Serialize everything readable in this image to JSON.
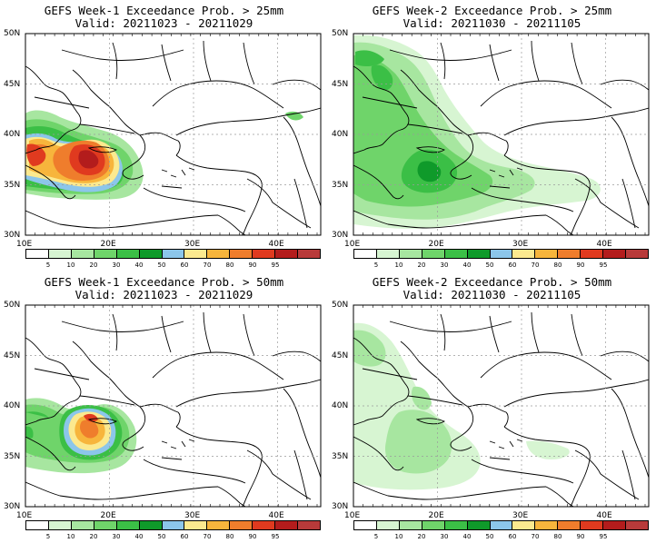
{
  "panels": [
    {
      "title": "GEFS Week-1 Exceedance Prob. > 25mm",
      "valid": "Valid: 20211023 - 20211029",
      "key": "w1_25"
    },
    {
      "title": "GEFS Week-2 Exceedance Prob. > 25mm",
      "valid": "Valid: 20211030 - 20211105",
      "key": "w2_25"
    },
    {
      "title": "GEFS Week-1 Exceedance Prob. > 50mm",
      "valid": "Valid: 20211023 - 20211029",
      "key": "w1_50"
    },
    {
      "title": "GEFS Week-2 Exceedance Prob. > 50mm",
      "valid": "Valid: 20211030 - 20211105",
      "key": "w2_50"
    }
  ],
  "axes": {
    "lat_labels": [
      "50N",
      "45N",
      "40N",
      "35N",
      "30N"
    ],
    "lon_labels": [
      "10E",
      "20E",
      "30E",
      "40E"
    ]
  },
  "colorbar": {
    "colors": [
      "#ffffff",
      "#d7f5d2",
      "#a7e6a0",
      "#6fd46a",
      "#3bbf46",
      "#0f9a2a",
      "#8cc6ea",
      "#fbe98f",
      "#f7b53c",
      "#ef7d2c",
      "#e03a1f",
      "#b31c1c",
      "#b83a3a"
    ],
    "labels": [
      "5",
      "10",
      "20",
      "30",
      "40",
      "50",
      "60",
      "70",
      "80",
      "90",
      "95"
    ]
  }
}
